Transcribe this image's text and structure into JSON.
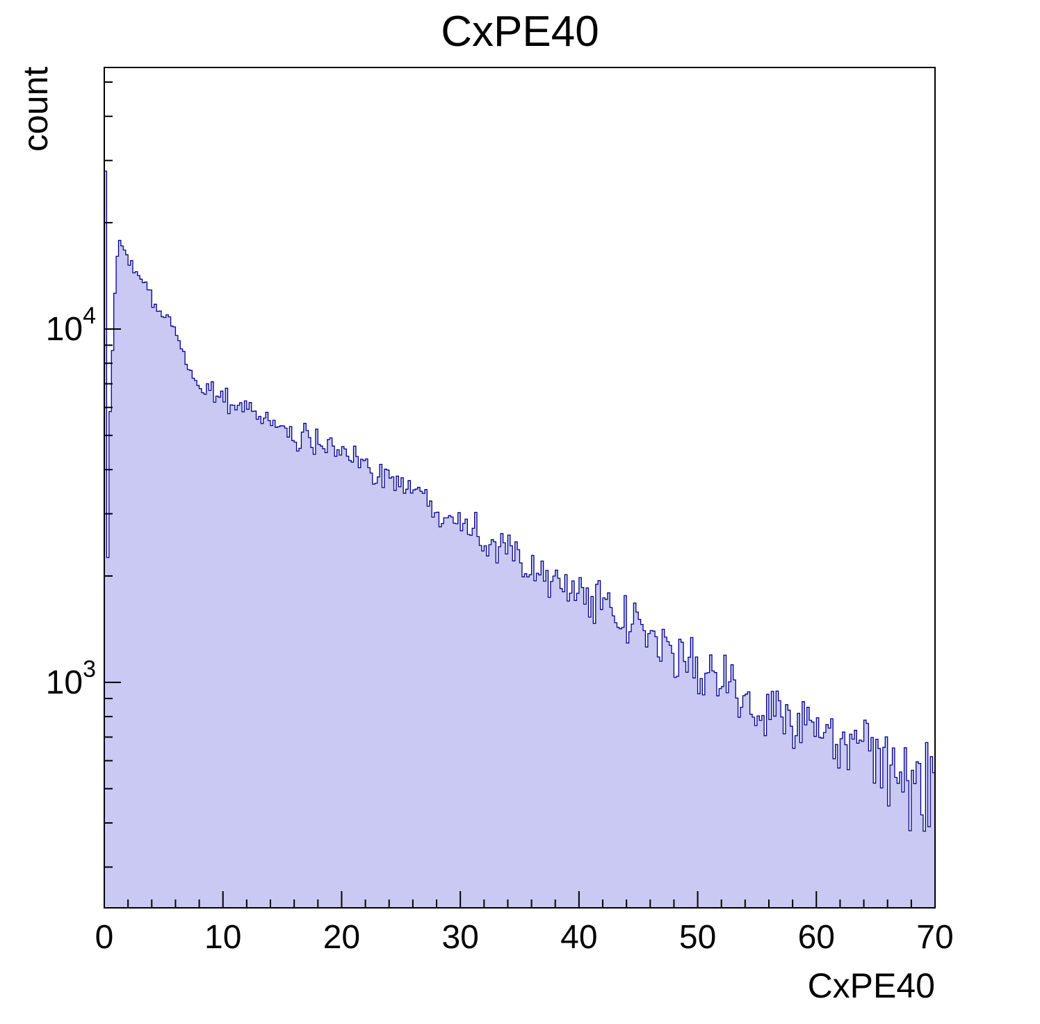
{
  "page": {
    "background": "#ffffff"
  },
  "chart_data": {
    "type": "histogram",
    "title": "CxPE40",
    "xlabel": "CxPE40",
    "ylabel": "count",
    "x_range": [
      0,
      70
    ],
    "bin_width": 0.2,
    "y_scale": "log",
    "y_range": [
      230,
      55000
    ],
    "x_major_ticks": [
      0,
      10,
      20,
      30,
      40,
      50,
      60,
      70
    ],
    "x_minor_step": 2,
    "y_major_ticks": [
      1000,
      10000
    ],
    "grid": false,
    "legend": "none",
    "fill_color": "#c9c9f3",
    "line_color": "#00008b",
    "frame_color": "#000000",
    "noise_k": 3,
    "profile_points": [
      [
        0.1,
        28000
      ],
      [
        0.3,
        2100
      ],
      [
        0.5,
        6200
      ],
      [
        0.7,
        9000
      ],
      [
        0.9,
        12500
      ],
      [
        1.1,
        15800
      ],
      [
        1.35,
        17800
      ],
      [
        1.6,
        16800
      ],
      [
        2.0,
        15600
      ],
      [
        2.5,
        14900
      ],
      [
        3.0,
        14100
      ],
      [
        3.5,
        13100
      ],
      [
        4.0,
        12100
      ],
      [
        4.5,
        11400
      ],
      [
        5.0,
        10300
      ],
      [
        5.4,
        10900
      ],
      [
        5.8,
        10300
      ],
      [
        6.2,
        9500
      ],
      [
        6.6,
        8600
      ],
      [
        7.0,
        7900
      ],
      [
        7.5,
        7400
      ],
      [
        8.0,
        7000
      ],
      [
        8.3,
        6600
      ],
      [
        8.6,
        6900
      ],
      [
        9.0,
        6700
      ],
      [
        10.0,
        6400
      ],
      [
        11.0,
        6100
      ],
      [
        12.0,
        5900
      ],
      [
        13.0,
        5650
      ],
      [
        14.0,
        5450
      ],
      [
        15.0,
        5250
      ],
      [
        16.0,
        5050
      ],
      [
        16.4,
        4350
      ],
      [
        16.7,
        5100
      ],
      [
        17.5,
        4950
      ],
      [
        18.5,
        4750
      ],
      [
        19.5,
        4550
      ],
      [
        20.5,
        4350
      ],
      [
        21.5,
        4200
      ],
      [
        22.5,
        4050
      ],
      [
        23.5,
        3900
      ],
      [
        24.5,
        3750
      ],
      [
        25.5,
        3600
      ],
      [
        26.5,
        3400
      ],
      [
        27.5,
        3250
      ],
      [
        28.5,
        3100
      ],
      [
        29.5,
        2975
      ],
      [
        30.5,
        2850
      ],
      [
        31.5,
        2725
      ],
      [
        32.3,
        2450
      ],
      [
        32.7,
        2650
      ],
      [
        33.3,
        2350
      ],
      [
        34.0,
        2450
      ],
      [
        35.0,
        2300
      ],
      [
        36.0,
        2200
      ],
      [
        37.0,
        2080
      ],
      [
        38.0,
        1980
      ],
      [
        39.0,
        1880
      ],
      [
        40.0,
        1790
      ],
      [
        41.0,
        1700
      ],
      [
        42.0,
        1620
      ],
      [
        43.0,
        1540
      ],
      [
        44.0,
        1470
      ],
      [
        45.0,
        1400
      ],
      [
        46.0,
        1340
      ],
      [
        47.0,
        1270
      ],
      [
        48.0,
        1210
      ],
      [
        49.0,
        1150
      ],
      [
        50.0,
        1100
      ],
      [
        51.0,
        1050
      ],
      [
        52.0,
        1000
      ],
      [
        53.0,
        960
      ],
      [
        54.0,
        920
      ],
      [
        55.0,
        880
      ],
      [
        56.0,
        845
      ],
      [
        57.0,
        810
      ],
      [
        58.0,
        780
      ],
      [
        59.0,
        750
      ],
      [
        60.0,
        720
      ],
      [
        61.0,
        695
      ],
      [
        62.0,
        670
      ],
      [
        63.0,
        645
      ],
      [
        64.0,
        620
      ],
      [
        65.0,
        600
      ],
      [
        66.0,
        580
      ],
      [
        67.0,
        560
      ],
      [
        68.0,
        540
      ],
      [
        69.0,
        520
      ],
      [
        70.0,
        500
      ]
    ]
  }
}
